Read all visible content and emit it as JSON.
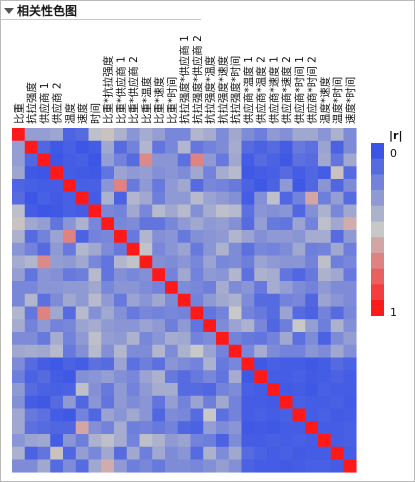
{
  "panel": {
    "title": "相关性色图"
  },
  "chart_data": {
    "type": "heatmap",
    "title": "相关性色图",
    "variables": [
      "比重",
      "抗拉强度",
      "供应商 1",
      "供应商 2",
      "温度",
      "速度",
      "时间",
      "比重*抗拉强度",
      "比重*供应商 1",
      "比重*供应商 2",
      "比重*温度",
      "比重*速度",
      "比重*时间",
      "抗拉强度*供应商 1",
      "抗拉强度*供应商 2",
      "抗拉强度*温度",
      "抗拉强度*速度",
      "抗拉强度*时间",
      "供应商*温度 1",
      "供应商*温度 2",
      "供应商*速度 1",
      "供应商*速度 2",
      "供应商*时间 1",
      "供应商*时间 2",
      "温度*速度",
      "温度*时间",
      "速度*时间"
    ],
    "abs_r": [
      [
        1.0,
        0.32,
        0.32,
        0.35,
        0.07,
        0.1,
        0.46,
        0.52,
        0.4,
        0.28,
        0.38,
        0.32,
        0.22,
        0.22,
        0.42,
        0.38,
        0.24,
        0.36,
        0.24,
        0.18,
        0.3,
        0.26,
        0.36,
        0.36,
        0.28,
        0.4,
        0.24
      ],
      [
        0.32,
        1.0,
        0.08,
        0.02,
        0.05,
        0.01,
        0.04,
        0.36,
        0.1,
        0.2,
        0.42,
        0.14,
        0.22,
        0.42,
        0.15,
        0.2,
        0.24,
        0.38,
        0.1,
        0.06,
        0.1,
        0.04,
        0.16,
        0.12,
        0.34,
        0.06,
        0.24
      ],
      [
        0.32,
        0.08,
        1.0,
        0.01,
        0.04,
        0.05,
        0.01,
        0.32,
        0.2,
        0.1,
        0.68,
        0.28,
        0.28,
        0.12,
        0.7,
        0.3,
        0.16,
        0.36,
        0.04,
        0.1,
        0.06,
        0.02,
        0.12,
        0.1,
        0.36,
        0.14,
        0.36
      ],
      [
        0.35,
        0.02,
        0.01,
        1.0,
        0.04,
        0.03,
        0.02,
        0.14,
        0.34,
        0.3,
        0.32,
        0.26,
        0.28,
        0.24,
        0.36,
        0.2,
        0.38,
        0.44,
        0.02,
        0.04,
        0.05,
        0.1,
        0.04,
        0.08,
        0.04,
        0.52,
        0.1
      ],
      [
        0.07,
        0.05,
        0.04,
        0.04,
        1.0,
        0.05,
        0.05,
        0.28,
        0.7,
        0.16,
        0.3,
        0.16,
        0.3,
        0.36,
        0.1,
        0.22,
        0.2,
        0.16,
        0.06,
        0.02,
        0.06,
        0.3,
        0.02,
        0.08,
        0.28,
        0.08,
        0.24
      ],
      [
        0.1,
        0.01,
        0.05,
        0.03,
        0.05,
        1.0,
        0.04,
        0.4,
        0.06,
        0.42,
        0.36,
        0.18,
        0.3,
        0.3,
        0.44,
        0.34,
        0.3,
        0.26,
        0.04,
        0.26,
        0.46,
        0.08,
        0.2,
        0.6,
        0.18,
        0.32,
        0.1
      ],
      [
        0.46,
        0.04,
        0.01,
        0.02,
        0.05,
        0.04,
        1.0,
        0.22,
        0.2,
        0.36,
        0.22,
        0.44,
        0.36,
        0.44,
        0.26,
        0.38,
        0.46,
        0.44,
        0.12,
        0.28,
        0.26,
        0.28,
        0.08,
        0.26,
        0.4,
        0.22,
        0.36
      ],
      [
        0.52,
        0.36,
        0.32,
        0.14,
        0.28,
        0.4,
        0.22,
        1.0,
        0.22,
        0.24,
        0.14,
        0.14,
        0.22,
        0.3,
        0.36,
        0.3,
        0.32,
        0.26,
        0.1,
        0.32,
        0.16,
        0.14,
        0.34,
        0.2,
        0.46,
        0.36,
        0.58
      ],
      [
        0.4,
        0.1,
        0.2,
        0.34,
        0.7,
        0.06,
        0.2,
        0.22,
        1.0,
        0.16,
        0.42,
        0.26,
        0.28,
        0.16,
        0.26,
        0.28,
        0.3,
        0.42,
        0.34,
        0.26,
        0.3,
        0.3,
        0.28,
        0.38,
        0.38,
        0.1,
        0.3
      ],
      [
        0.28,
        0.2,
        0.1,
        0.3,
        0.16,
        0.42,
        0.36,
        0.24,
        0.16,
        1.0,
        0.48,
        0.22,
        0.28,
        0.34,
        0.16,
        0.28,
        0.4,
        0.24,
        0.12,
        0.22,
        0.2,
        0.24,
        0.36,
        0.18,
        0.2,
        0.36,
        0.18
      ],
      [
        0.38,
        0.42,
        0.68,
        0.32,
        0.3,
        0.36,
        0.22,
        0.14,
        0.42,
        0.48,
        1.0,
        0.26,
        0.24,
        0.28,
        0.22,
        0.34,
        0.22,
        0.24,
        0.18,
        0.34,
        0.3,
        0.28,
        0.28,
        0.2,
        0.46,
        0.18,
        0.22
      ],
      [
        0.32,
        0.14,
        0.28,
        0.26,
        0.16,
        0.18,
        0.44,
        0.14,
        0.26,
        0.22,
        0.26,
        1.0,
        0.2,
        0.36,
        0.2,
        0.3,
        0.28,
        0.42,
        0.12,
        0.4,
        0.38,
        0.14,
        0.08,
        0.16,
        0.4,
        0.36,
        0.16
      ],
      [
        0.22,
        0.22,
        0.28,
        0.28,
        0.3,
        0.3,
        0.36,
        0.22,
        0.28,
        0.28,
        0.24,
        0.2,
        1.0,
        0.24,
        0.22,
        0.18,
        0.38,
        0.24,
        0.28,
        0.16,
        0.38,
        0.32,
        0.24,
        0.2,
        0.3,
        0.24,
        0.24
      ],
      [
        0.22,
        0.42,
        0.12,
        0.24,
        0.36,
        0.3,
        0.44,
        0.3,
        0.16,
        0.34,
        0.28,
        0.36,
        0.24,
        1.0,
        0.2,
        0.3,
        0.36,
        0.4,
        0.24,
        0.1,
        0.1,
        0.2,
        0.22,
        0.08,
        0.34,
        0.28,
        0.24
      ],
      [
        0.42,
        0.15,
        0.7,
        0.36,
        0.1,
        0.44,
        0.26,
        0.36,
        0.26,
        0.16,
        0.22,
        0.2,
        0.22,
        0.2,
        1.0,
        0.14,
        0.2,
        0.5,
        0.2,
        0.16,
        0.1,
        0.34,
        0.1,
        0.06,
        0.2,
        0.1,
        0.22
      ],
      [
        0.38,
        0.2,
        0.3,
        0.2,
        0.22,
        0.34,
        0.38,
        0.3,
        0.28,
        0.28,
        0.34,
        0.3,
        0.18,
        0.3,
        0.14,
        1.0,
        0.24,
        0.34,
        0.4,
        0.22,
        0.08,
        0.18,
        0.5,
        0.32,
        0.18,
        0.4,
        0.26
      ],
      [
        0.24,
        0.24,
        0.16,
        0.38,
        0.2,
        0.3,
        0.46,
        0.32,
        0.3,
        0.4,
        0.22,
        0.28,
        0.38,
        0.36,
        0.2,
        0.24,
        1.0,
        0.2,
        0.16,
        0.14,
        0.2,
        0.36,
        0.12,
        0.24,
        0.06,
        0.24,
        0.32
      ],
      [
        0.36,
        0.38,
        0.36,
        0.44,
        0.16,
        0.26,
        0.44,
        0.26,
        0.42,
        0.24,
        0.24,
        0.42,
        0.24,
        0.4,
        0.5,
        0.34,
        0.2,
        1.0,
        0.22,
        0.38,
        0.24,
        0.2,
        0.2,
        0.28,
        0.24,
        0.36,
        0.26
      ],
      [
        0.24,
        0.1,
        0.04,
        0.02,
        0.06,
        0.04,
        0.12,
        0.1,
        0.34,
        0.12,
        0.18,
        0.12,
        0.28,
        0.24,
        0.2,
        0.4,
        0.16,
        0.22,
        1.0,
        0.02,
        0.05,
        0.04,
        0.04,
        0.02,
        0.04,
        0.1,
        0.06
      ],
      [
        0.18,
        0.06,
        0.1,
        0.04,
        0.02,
        0.26,
        0.28,
        0.32,
        0.26,
        0.22,
        0.34,
        0.4,
        0.16,
        0.1,
        0.16,
        0.22,
        0.14,
        0.38,
        0.02,
        1.0,
        0.04,
        0.04,
        0.05,
        0.03,
        0.04,
        0.06,
        0.04
      ],
      [
        0.3,
        0.1,
        0.06,
        0.05,
        0.06,
        0.46,
        0.26,
        0.16,
        0.3,
        0.2,
        0.3,
        0.38,
        0.38,
        0.1,
        0.1,
        0.08,
        0.2,
        0.24,
        0.05,
        0.04,
        1.0,
        0.03,
        0.04,
        0.02,
        0.05,
        0.04,
        0.04
      ],
      [
        0.26,
        0.04,
        0.02,
        0.1,
        0.3,
        0.08,
        0.28,
        0.14,
        0.3,
        0.24,
        0.28,
        0.14,
        0.32,
        0.2,
        0.34,
        0.18,
        0.36,
        0.2,
        0.04,
        0.04,
        0.03,
        1.0,
        0.05,
        0.04,
        0.04,
        0.05,
        0.03
      ],
      [
        0.36,
        0.16,
        0.12,
        0.04,
        0.02,
        0.2,
        0.08,
        0.34,
        0.28,
        0.36,
        0.28,
        0.08,
        0.24,
        0.22,
        0.1,
        0.5,
        0.12,
        0.2,
        0.04,
        0.05,
        0.04,
        0.05,
        1.0,
        0.04,
        0.05,
        0.03,
        0.04
      ],
      [
        0.36,
        0.12,
        0.1,
        0.08,
        0.08,
        0.6,
        0.26,
        0.2,
        0.38,
        0.18,
        0.2,
        0.16,
        0.2,
        0.08,
        0.06,
        0.32,
        0.24,
        0.28,
        0.02,
        0.03,
        0.02,
        0.04,
        0.04,
        1.0,
        0.04,
        0.04,
        0.05
      ],
      [
        0.28,
        0.34,
        0.36,
        0.04,
        0.28,
        0.18,
        0.4,
        0.46,
        0.38,
        0.2,
        0.46,
        0.4,
        0.3,
        0.34,
        0.2,
        0.18,
        0.06,
        0.24,
        0.04,
        0.04,
        0.05,
        0.04,
        0.05,
        0.04,
        1.0,
        0.04,
        0.05
      ],
      [
        0.4,
        0.06,
        0.14,
        0.52,
        0.08,
        0.32,
        0.22,
        0.36,
        0.1,
        0.36,
        0.18,
        0.36,
        0.24,
        0.28,
        0.1,
        0.4,
        0.24,
        0.36,
        0.1,
        0.06,
        0.04,
        0.05,
        0.03,
        0.04,
        0.04,
        1.0,
        0.04
      ],
      [
        0.24,
        0.24,
        0.36,
        0.1,
        0.24,
        0.1,
        0.36,
        0.58,
        0.3,
        0.18,
        0.22,
        0.16,
        0.24,
        0.24,
        0.22,
        0.26,
        0.32,
        0.26,
        0.06,
        0.04,
        0.04,
        0.03,
        0.04,
        0.05,
        0.05,
        0.04,
        1.0
      ]
    ],
    "legend": {
      "title": "|r|",
      "min_label": "0",
      "max_label": "1",
      "range": [
        0,
        1
      ],
      "placement": "right"
    },
    "color_scale": {
      "low": "#3a54e6",
      "mid": "#c8c8c8",
      "high": "#ff1a1a"
    }
  }
}
